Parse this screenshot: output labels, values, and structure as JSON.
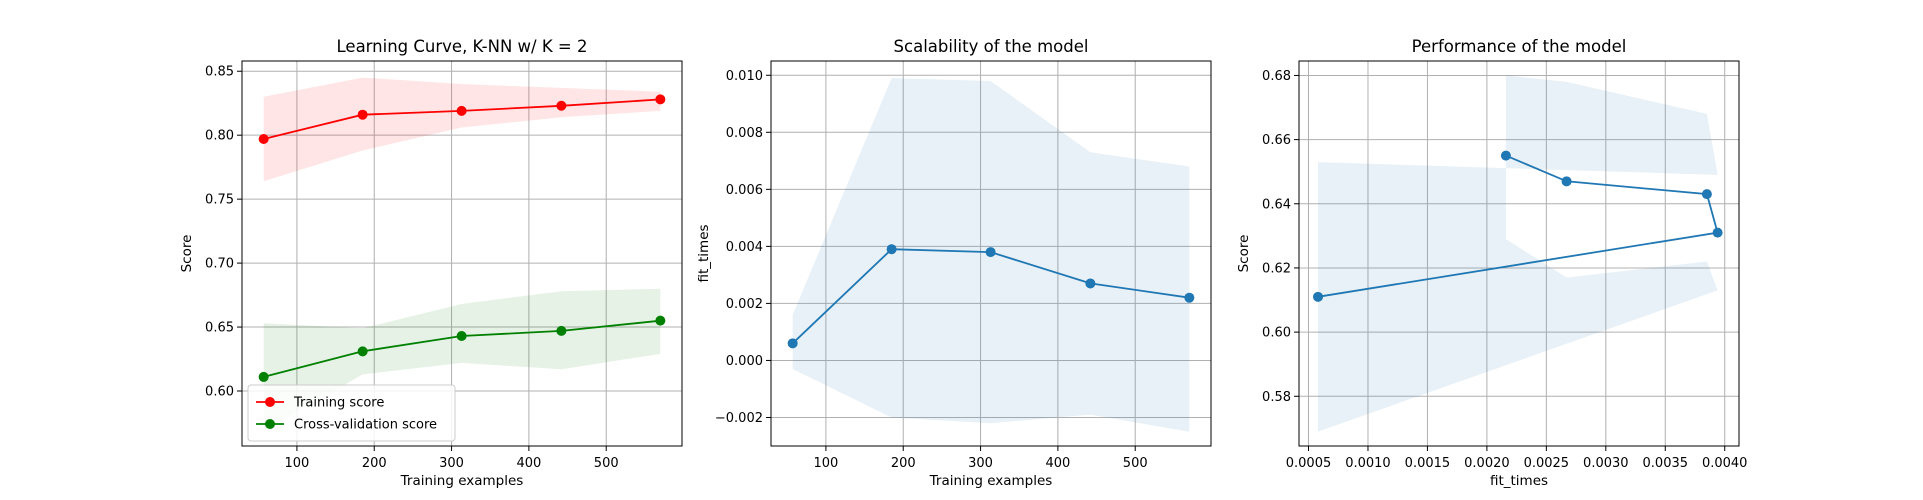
{
  "chart_data": [
    {
      "type": "line",
      "title": "Learning Curve, K-NN w/ K = 2",
      "xlabel": "Training examples",
      "ylabel": "Score",
      "xlim": [
        29,
        598
      ],
      "ylim": [
        0.557,
        0.858
      ],
      "xticks": [
        100,
        200,
        300,
        400,
        500
      ],
      "yticks": [
        0.6,
        0.65,
        0.7,
        0.75,
        0.8,
        0.85
      ],
      "xtick_labels": [
        "100",
        "200",
        "300",
        "400",
        "500"
      ],
      "ytick_labels": [
        "0.60",
        "0.65",
        "0.70",
        "0.75",
        "0.80",
        "0.85"
      ],
      "grid": true,
      "legend_position": "lower-left",
      "x": [
        57,
        185,
        313,
        442,
        570
      ],
      "series": [
        {
          "name": "Training score",
          "color": "#ff0000",
          "marker": "circle",
          "values": [
            0.797,
            0.816,
            0.819,
            0.823,
            0.828
          ],
          "band_lower": [
            0.764,
            0.788,
            0.806,
            0.814,
            0.819
          ],
          "band_upper": [
            0.83,
            0.845,
            0.84,
            0.837,
            0.834
          ]
        },
        {
          "name": "Cross-validation score",
          "color": "#008000",
          "marker": "circle",
          "values": [
            0.611,
            0.631,
            0.643,
            0.647,
            0.655
          ],
          "band_lower": [
            0.569,
            0.613,
            0.622,
            0.617,
            0.629
          ],
          "band_upper": [
            0.653,
            0.649,
            0.668,
            0.678,
            0.68
          ]
        }
      ]
    },
    {
      "type": "line",
      "title": "Scalability of the model",
      "xlabel": "Training examples",
      "ylabel": "fit_times",
      "xlim": [
        29,
        598
      ],
      "ylim": [
        -0.003,
        0.0105
      ],
      "xticks": [
        100,
        200,
        300,
        400,
        500
      ],
      "yticks": [
        -0.002,
        0.0,
        0.002,
        0.004,
        0.006,
        0.008,
        0.01
      ],
      "xtick_labels": [
        "100",
        "200",
        "300",
        "400",
        "500"
      ],
      "ytick_labels": [
        "−0.002",
        "0.000",
        "0.002",
        "0.004",
        "0.006",
        "0.008",
        "0.010"
      ],
      "grid": true,
      "x": [
        57,
        185,
        313,
        442,
        570
      ],
      "series": [
        {
          "color": "#1f77b4",
          "marker": "circle",
          "values": [
            0.0006,
            0.0039,
            0.0038,
            0.0027,
            0.0022
          ],
          "band_lower": [
            -0.0003,
            -0.002,
            -0.0022,
            -0.0019,
            -0.0025
          ],
          "band_upper": [
            0.0016,
            0.0099,
            0.0098,
            0.0073,
            0.0068
          ]
        }
      ]
    },
    {
      "type": "line",
      "title": "Performance of the model",
      "xlabel": "fit_times",
      "ylabel": "Score",
      "xlim": [
        0.00042,
        0.00412
      ],
      "ylim": [
        0.5645,
        0.6845
      ],
      "xticks": [
        0.0005,
        0.001,
        0.0015,
        0.002,
        0.0025,
        0.003,
        0.0035,
        0.004
      ],
      "yticks": [
        0.58,
        0.6,
        0.62,
        0.64,
        0.66,
        0.68
      ],
      "xtick_labels": [
        "0.0005",
        "0.0010",
        "0.0015",
        "0.0020",
        "0.0025",
        "0.0030",
        "0.0035",
        "0.0040"
      ],
      "ytick_labels": [
        "0.58",
        "0.60",
        "0.62",
        "0.64",
        "0.66",
        "0.68"
      ],
      "grid": true,
      "series": [
        {
          "color": "#1f77b4",
          "marker": "circle",
          "x": [
            0.00058,
            0.00394,
            0.00385,
            0.00267,
            0.00216
          ],
          "values": [
            0.611,
            0.631,
            0.643,
            0.647,
            0.655
          ],
          "band_lower": [
            0.569,
            0.613,
            0.622,
            0.617,
            0.629
          ],
          "band_upper": [
            0.653,
            0.649,
            0.668,
            0.678,
            0.68
          ]
        }
      ]
    }
  ]
}
